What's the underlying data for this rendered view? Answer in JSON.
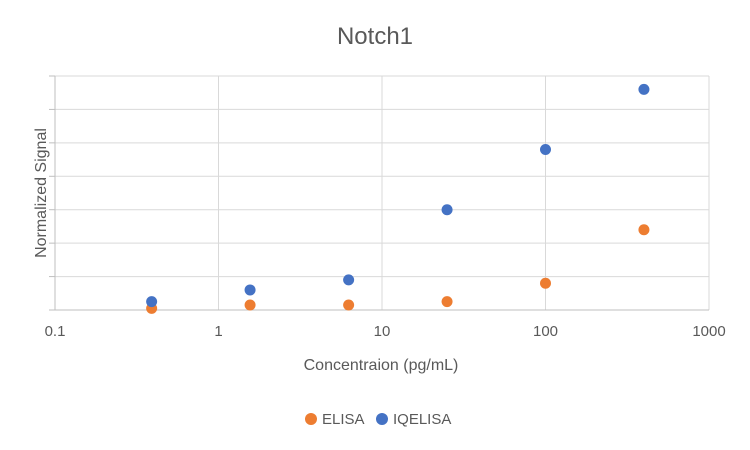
{
  "chart_data": {
    "type": "scatter",
    "title": "Notch1",
    "xlabel": "Concentraion (pg/mL)",
    "ylabel": "Normalized Signal",
    "x_scale": "log",
    "xlim": [
      0.1,
      1000
    ],
    "x_tick_labels": [
      "0.1",
      "1",
      "10",
      "100",
      "1000"
    ],
    "x_tick_values": [
      0.1,
      1,
      10,
      100,
      1000
    ],
    "y_tick_labels_shown": false,
    "ylim": [
      0,
      7
    ],
    "grid": true,
    "legend_position": "bottom",
    "series": [
      {
        "name": "ELISA",
        "color": "#ED7D31",
        "x": [
          0.39,
          1.56,
          6.25,
          25,
          100,
          400
        ],
        "y": [
          0.05,
          0.15,
          0.15,
          0.25,
          0.8,
          2.4
        ]
      },
      {
        "name": "IQELISA",
        "color": "#4472C4",
        "x": [
          0.39,
          1.56,
          6.25,
          25,
          100,
          400
        ],
        "y": [
          0.25,
          0.6,
          0.9,
          3.0,
          4.8,
          6.6
        ]
      }
    ]
  }
}
